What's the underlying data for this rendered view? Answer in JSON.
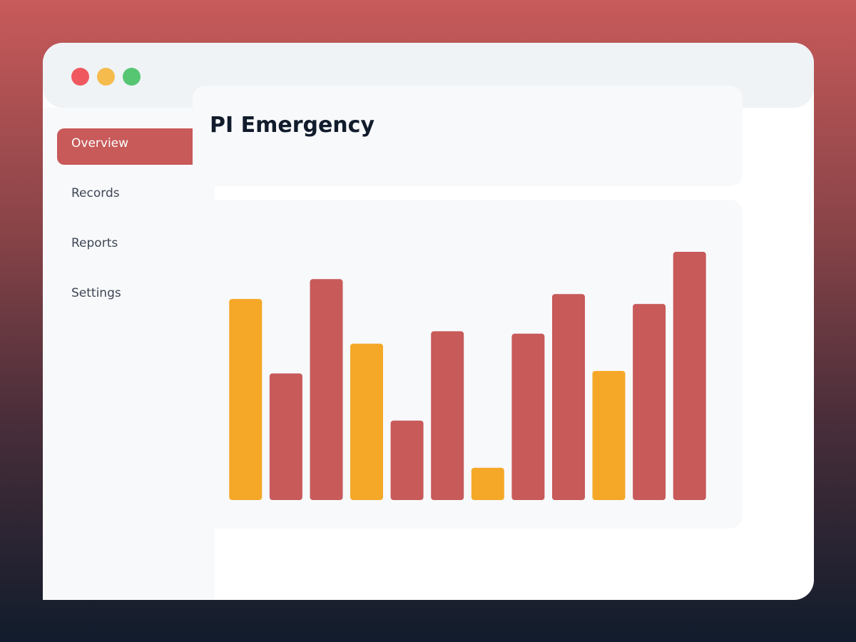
{
  "window": {
    "controls": [
      "close",
      "minimize",
      "maximize"
    ]
  },
  "sidebar": {
    "items": [
      {
        "label": "Overview",
        "active": true
      },
      {
        "label": "Records",
        "active": false
      },
      {
        "label": "Reports",
        "active": false
      },
      {
        "label": "Settings",
        "active": false
      }
    ]
  },
  "header": {
    "title": "PI Emergency"
  },
  "colors": {
    "accent": "#c85a5a",
    "highlight": "#f5a828",
    "sidebar_bg": "#f8f9fb",
    "card_bg": "#f8f9fb"
  },
  "chart_data": {
    "type": "bar",
    "title": "",
    "xlabel": "",
    "ylabel": "",
    "ylim": [
      0,
      100
    ],
    "grid": false,
    "legend": "none",
    "categories": [
      "",
      "",
      "",
      "",
      "",
      "",
      "",
      "",
      "",
      "",
      "",
      ""
    ],
    "values": [
      81,
      51,
      89,
      63,
      32,
      68,
      13,
      67,
      83,
      52,
      79,
      100
    ],
    "bar_colors": [
      "#f5a828",
      "#c85a5a",
      "#c85a5a",
      "#f5a828",
      "#c85a5a",
      "#c85a5a",
      "#f5a828",
      "#c85a5a",
      "#c85a5a",
      "#f5a828",
      "#c85a5a",
      "#c85a5a"
    ]
  }
}
